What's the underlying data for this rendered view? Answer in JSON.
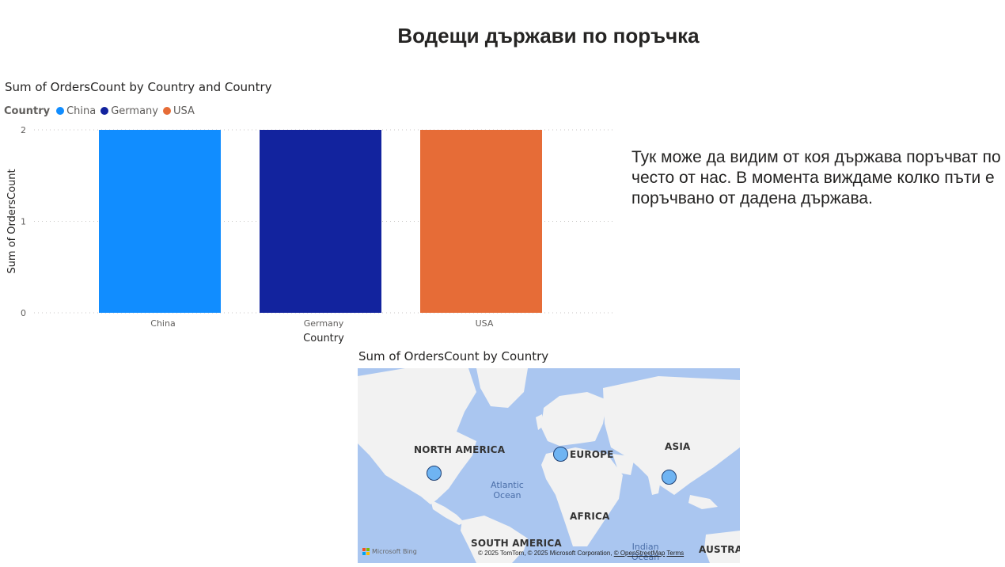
{
  "page": {
    "title": "Водещи държави по поръчка"
  },
  "bar_visual": {
    "title": "Sum of OrdersCount by Country and Country",
    "legend_title": "Country",
    "legend": [
      {
        "name": "China",
        "color": "#118dff"
      },
      {
        "name": "Germany",
        "color": "#12239e"
      },
      {
        "name": "USA",
        "color": "#e66c37"
      }
    ]
  },
  "chart_data": {
    "type": "bar",
    "title": "Sum of OrdersCount by Country and Country",
    "categories": [
      "China",
      "Germany",
      "USA"
    ],
    "values": [
      2,
      2,
      2
    ],
    "colors": [
      "#118dff",
      "#12239e",
      "#e66c37"
    ],
    "xlabel": "Country",
    "ylabel": "Sum of OrdersCount",
    "ylim": [
      0,
      2
    ],
    "yticks": [
      0,
      1,
      2
    ],
    "grid": true,
    "legend_position": "top-left"
  },
  "narrative": {
    "text": "Тук може да видим от коя държава поръчват по често от нас. В момента виждаме колко пъти е поръчвано от дадена държава."
  },
  "map_visual": {
    "title": "Sum of OrdersCount by Country",
    "continents": [
      "NORTH AMERICA",
      "EUROPE",
      "ASIA",
      "AFRICA",
      "SOUTH AMERICA",
      "AUSTRAL"
    ],
    "oceans": [
      "Atlantic\nOcean",
      "Indian\nOcean"
    ],
    "bubbles": [
      {
        "country": "USA",
        "value": 2
      },
      {
        "country": "Germany",
        "value": 2
      },
      {
        "country": "China",
        "value": 2
      }
    ],
    "bubble_color": "#6fb4f2",
    "logo_text": "Microsoft Bing",
    "attribution_text": "© 2025 TomTom, © 2025 Microsoft Corporation, ",
    "attribution_link1": "© OpenStreetMap",
    "attribution_link2": "Terms"
  }
}
